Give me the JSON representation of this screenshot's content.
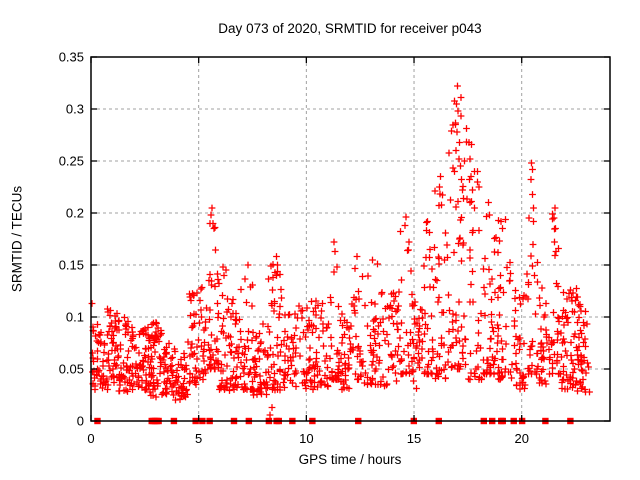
{
  "chart_data": {
    "type": "scatter",
    "title": "Day 073 of 2020, SRMTID for receiver p043",
    "xlabel": "GPS time / hours",
    "ylabel": "SRMTID / TECUs",
    "xlim": [
      0,
      24.1
    ],
    "ylim": [
      0,
      0.35
    ],
    "xticks": {
      "values": [
        0,
        5,
        10,
        15,
        20
      ],
      "labels": [
        "0",
        "5",
        "10",
        "15",
        "20"
      ]
    },
    "yticks": {
      "values": [
        0,
        0.05,
        0.1,
        0.15,
        0.2,
        0.25,
        0.3,
        0.35
      ],
      "labels": [
        "0",
        "0.05",
        "0.1",
        "0.15",
        "0.2",
        "0.25",
        "0.3",
        "0.35"
      ]
    },
    "grid": true,
    "legend": "none",
    "marker": "plus",
    "marker_color": "#ff0000",
    "grid_color": "#a0a0a0",
    "axis_color": "#000000",
    "background": "#ffffff",
    "series_name": "SRMTID",
    "notable_points": [
      [
        0.05,
        0.113
      ],
      [
        5.62,
        0.205
      ],
      [
        5.58,
        0.198
      ],
      [
        5.67,
        0.19
      ],
      [
        5.72,
        0.185
      ],
      [
        6.12,
        0.148
      ],
      [
        7.28,
        0.15
      ],
      [
        8.62,
        0.158
      ],
      [
        8.66,
        0.15
      ],
      [
        8.55,
        0.143
      ],
      [
        8.4,
        0.013
      ],
      [
        8.32,
        0.006
      ],
      [
        11.28,
        0.172
      ],
      [
        11.32,
        0.163
      ],
      [
        12.35,
        0.158
      ],
      [
        13.08,
        0.155
      ],
      [
        14.62,
        0.196
      ],
      [
        14.58,
        0.188
      ],
      [
        15.62,
        0.192
      ],
      [
        15.58,
        0.183
      ],
      [
        16.22,
        0.235
      ],
      [
        16.18,
        0.225
      ],
      [
        17.02,
        0.322
      ],
      [
        16.98,
        0.305
      ],
      [
        17.05,
        0.298
      ],
      [
        16.92,
        0.285
      ],
      [
        17.0,
        0.278
      ],
      [
        17.1,
        0.268
      ],
      [
        16.95,
        0.26
      ],
      [
        17.08,
        0.252
      ],
      [
        17.15,
        0.245
      ],
      [
        16.88,
        0.24
      ],
      [
        17.2,
        0.232
      ],
      [
        17.25,
        0.222
      ],
      [
        17.3,
        0.214
      ],
      [
        17.55,
        0.268
      ],
      [
        17.6,
        0.252
      ],
      [
        17.65,
        0.235
      ],
      [
        17.72,
        0.222
      ],
      [
        17.8,
        0.205
      ],
      [
        18.45,
        0.21
      ],
      [
        18.5,
        0.198
      ],
      [
        19.05,
        0.192
      ],
      [
        19.1,
        0.185
      ],
      [
        20.45,
        0.248
      ],
      [
        20.42,
        0.232
      ],
      [
        20.5,
        0.218
      ],
      [
        20.55,
        0.205
      ],
      [
        21.55,
        0.205
      ],
      [
        21.5,
        0.195
      ],
      [
        21.58,
        0.185
      ],
      [
        21.52,
        0.172
      ],
      [
        21.6,
        0.163
      ]
    ],
    "scatter_bands": [
      [
        0.05,
        0.6,
        0.03,
        0.095,
        40,
        "f"
      ],
      [
        0.6,
        1.2,
        0.03,
        0.11,
        45,
        "f"
      ],
      [
        1.2,
        2.0,
        0.028,
        0.1,
        60,
        "f"
      ],
      [
        2.0,
        2.6,
        0.03,
        0.09,
        40,
        "f"
      ],
      [
        2.6,
        3.3,
        0.022,
        0.095,
        60,
        "f"
      ],
      [
        3.3,
        3.9,
        0.025,
        0.075,
        40,
        "f"
      ],
      [
        3.9,
        4.5,
        0.02,
        0.065,
        40,
        "f"
      ],
      [
        4.5,
        5.0,
        0.035,
        0.125,
        35,
        "f"
      ],
      [
        5.0,
        5.45,
        0.04,
        0.13,
        25,
        "f"
      ],
      [
        5.45,
        5.95,
        0.05,
        0.205,
        40,
        "s"
      ],
      [
        5.95,
        6.35,
        0.03,
        0.15,
        28,
        "s"
      ],
      [
        6.35,
        6.95,
        0.025,
        0.12,
        40,
        "f"
      ],
      [
        6.95,
        7.5,
        0.03,
        0.15,
        35,
        "s"
      ],
      [
        7.5,
        8.25,
        0.025,
        0.095,
        50,
        "f"
      ],
      [
        8.25,
        8.95,
        0.03,
        0.16,
        45,
        "s"
      ],
      [
        8.95,
        9.65,
        0.03,
        0.105,
        38,
        "f"
      ],
      [
        9.65,
        10.35,
        0.03,
        0.115,
        40,
        "f"
      ],
      [
        10.35,
        11.05,
        0.03,
        0.125,
        40,
        "f"
      ],
      [
        11.05,
        11.55,
        0.04,
        0.172,
        30,
        "s"
      ],
      [
        11.55,
        12.05,
        0.03,
        0.105,
        32,
        "f"
      ],
      [
        12.05,
        12.65,
        0.04,
        0.158,
        32,
        "s"
      ],
      [
        12.65,
        13.45,
        0.035,
        0.155,
        42,
        "s"
      ],
      [
        13.45,
        14.35,
        0.03,
        0.125,
        42,
        "f"
      ],
      [
        14.35,
        14.95,
        0.045,
        0.196,
        32,
        "s"
      ],
      [
        14.95,
        15.45,
        0.03,
        0.115,
        30,
        "f"
      ],
      [
        15.45,
        15.95,
        0.045,
        0.195,
        32,
        "s"
      ],
      [
        15.95,
        16.55,
        0.04,
        0.235,
        36,
        "s"
      ],
      [
        16.55,
        17.45,
        0.05,
        0.322,
        60,
        "s"
      ],
      [
        17.45,
        18.15,
        0.04,
        0.27,
        36,
        "s"
      ],
      [
        18.15,
        18.85,
        0.045,
        0.21,
        40,
        "s"
      ],
      [
        18.85,
        19.65,
        0.04,
        0.195,
        45,
        "s"
      ],
      [
        19.65,
        20.25,
        0.03,
        0.13,
        36,
        "f"
      ],
      [
        20.25,
        20.75,
        0.045,
        0.248,
        30,
        "s"
      ],
      [
        20.75,
        21.35,
        0.035,
        0.13,
        36,
        "f"
      ],
      [
        21.35,
        21.85,
        0.045,
        0.205,
        30,
        "s"
      ],
      [
        21.85,
        22.55,
        0.03,
        0.13,
        52,
        "f"
      ],
      [
        22.55,
        23.15,
        0.028,
        0.12,
        46,
        "f"
      ]
    ],
    "zero_markers_x": [
      0.3,
      2.82,
      2.9,
      2.98,
      3.06,
      3.14,
      3.85,
      4.86,
      5.17,
      5.51,
      6.64,
      7.33,
      8.26,
      8.62,
      8.72,
      9.35,
      10.28,
      12.41,
      14.99,
      16.15,
      18.24,
      18.63,
      19.05,
      19.12,
      19.63,
      20.02,
      21.1,
      22.26
    ]
  }
}
